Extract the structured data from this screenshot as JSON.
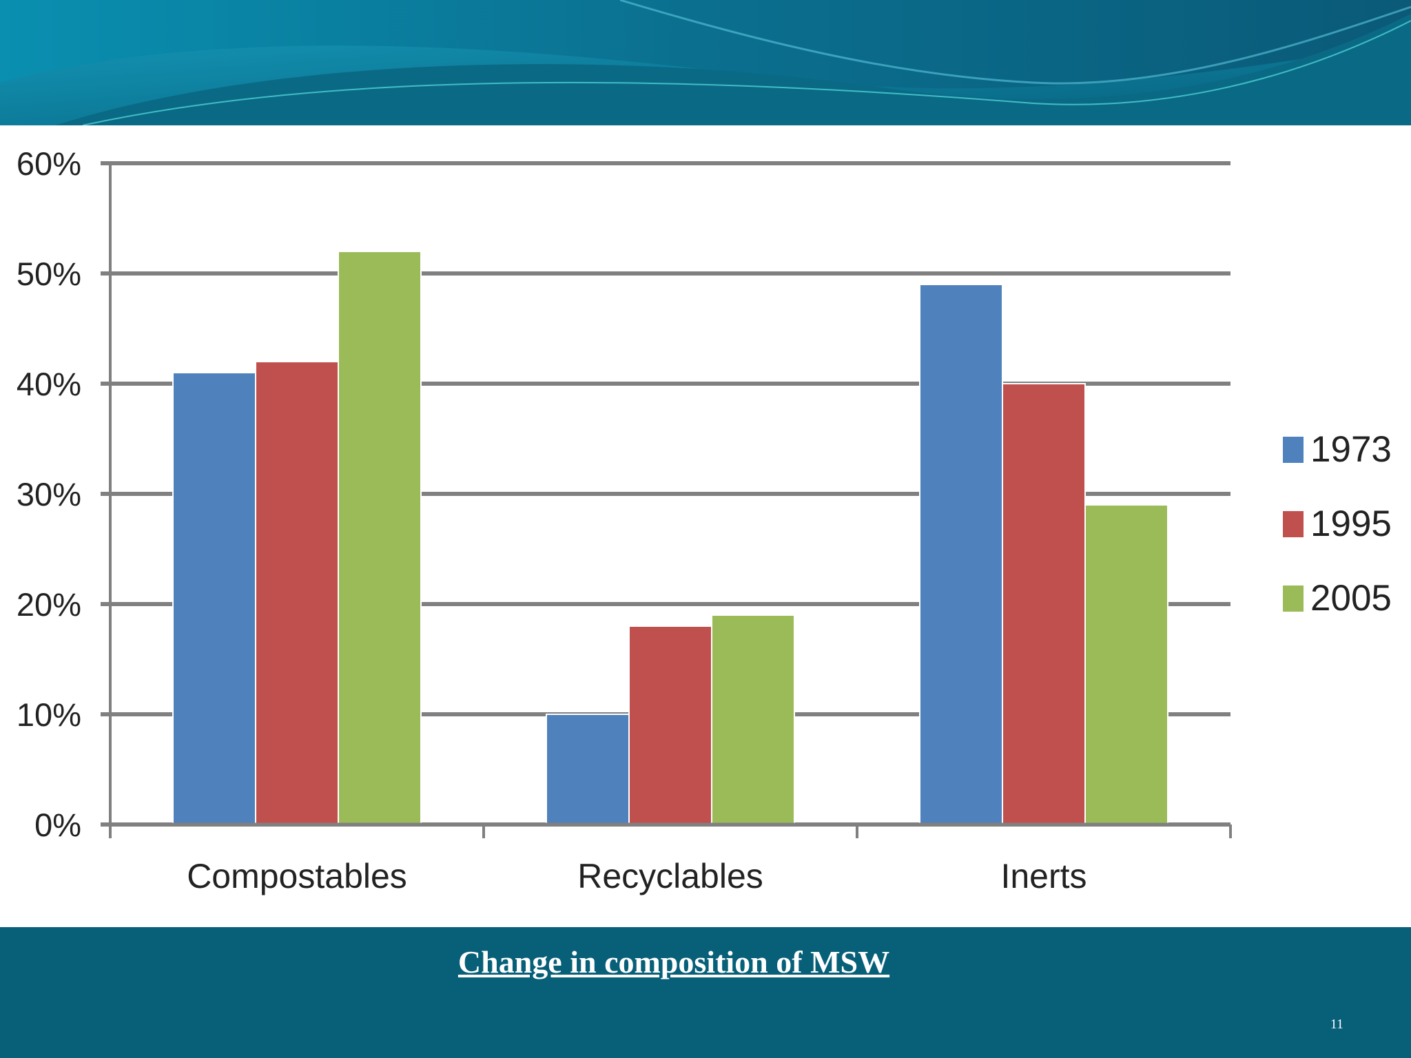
{
  "slide": {
    "caption": "Change in composition of MSW",
    "page_number": "11"
  },
  "colors": {
    "banner_dark": "#075f78",
    "banner_light": "#1aa3b8",
    "series_1973": "#4f81bd",
    "series_1995": "#c0504d",
    "series_2005": "#9bbb59",
    "gridline": "#808080"
  },
  "chart_data": {
    "type": "bar",
    "categories": [
      "Compostables",
      "Recyclables",
      "Inerts"
    ],
    "series": [
      {
        "name": "1973",
        "values": [
          41,
          10,
          49
        ]
      },
      {
        "name": "1995",
        "values": [
          42,
          18,
          40
        ]
      },
      {
        "name": "2005",
        "values": [
          52,
          19,
          29
        ]
      }
    ],
    "title": "",
    "xlabel": "",
    "ylabel": "",
    "ylim": [
      0,
      60
    ],
    "yticks": [
      "0%",
      "10%",
      "20%",
      "30%",
      "40%",
      "50%",
      "60%"
    ],
    "grid": true,
    "legend_position": "right"
  }
}
